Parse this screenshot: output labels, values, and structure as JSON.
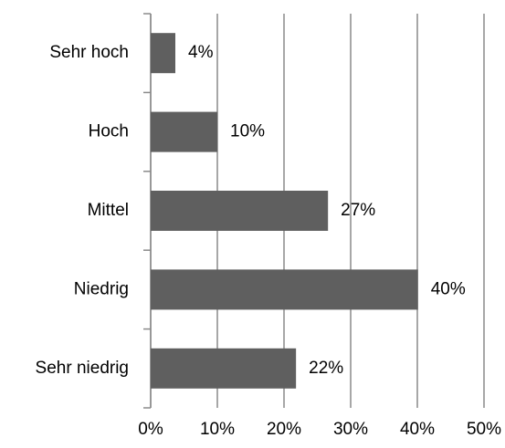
{
  "chart_data": {
    "type": "barh",
    "categories": [
      "Sehr hoch",
      "Hoch",
      "Mittel",
      "Niedrig",
      "Sehr niedrig"
    ],
    "values": [
      3.7,
      10,
      26.6,
      40.1,
      21.8
    ],
    "value_labels": [
      "4%",
      "10%",
      "27%",
      "40%",
      "22%"
    ],
    "color": "#5f5f5f",
    "xlim": [
      0,
      50
    ],
    "xticks": [
      {
        "value": 0,
        "label": "0%"
      },
      {
        "value": 10,
        "label": "10%"
      },
      {
        "value": 20,
        "label": "20%"
      },
      {
        "value": 30,
        "label": "30%"
      },
      {
        "value": 40,
        "label": "40%"
      },
      {
        "value": 50,
        "label": "50%"
      }
    ],
    "grid": true
  }
}
